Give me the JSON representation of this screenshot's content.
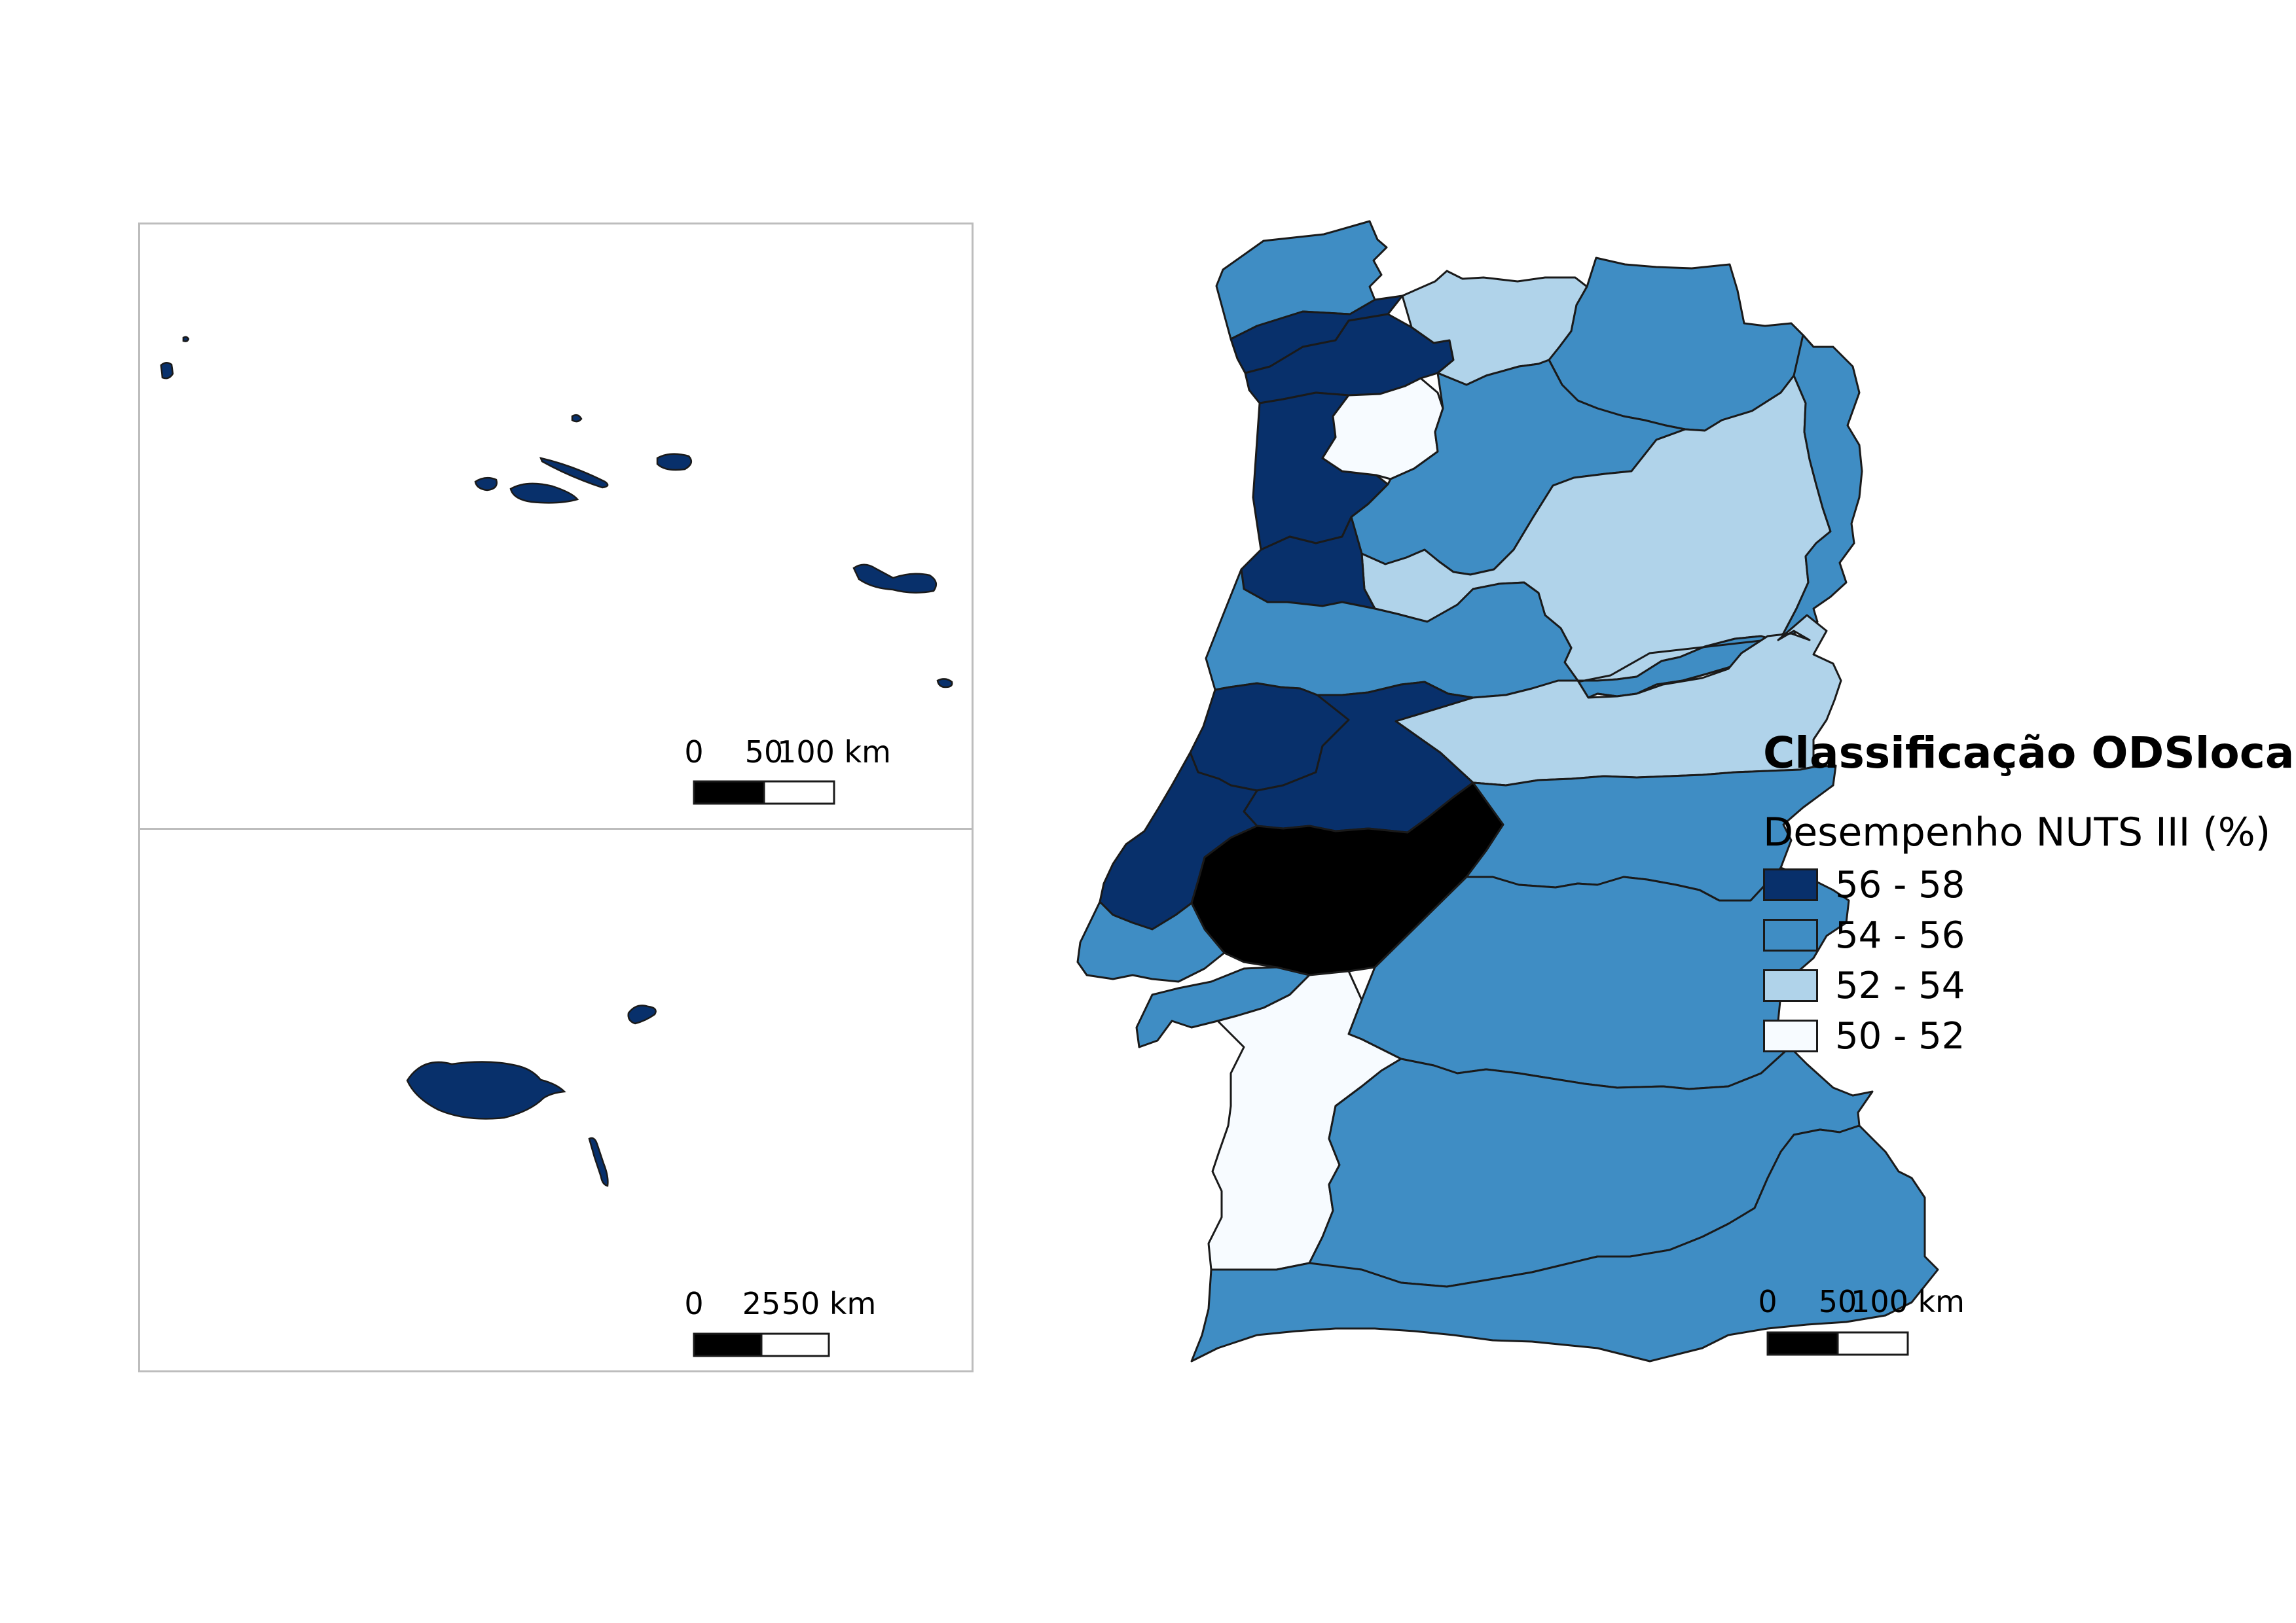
{
  "legend": {
    "title": "Classificação ODSlocal",
    "subtitle": "Desempenho NUTS III (%)",
    "classes": [
      {
        "label": "56 - 58",
        "color": "#08306b"
      },
      {
        "label": "54 - 56",
        "color": "#3f8dc4"
      },
      {
        "label": "52 - 54",
        "color": "#b0d3ea"
      },
      {
        "label": "50 - 52",
        "color": "#f7fbff"
      }
    ]
  },
  "scale_bars": {
    "azores": [
      "0",
      "50",
      "100 km"
    ],
    "madeira": [
      "0",
      "25",
      "50 km"
    ],
    "mainland": [
      "0",
      "50",
      "100 km"
    ]
  },
  "regions": {
    "azores": "56 - 58",
    "madeira": "56 - 58",
    "alto_minho": "54 - 56",
    "cavado": "56 - 58",
    "ave": "56 - 58",
    "area_metropolitana_porto": "56 - 58",
    "alto_tamega": "52 - 54",
    "tamega_e_sousa": "50 - 52",
    "terras_tras_os_montes": "54 - 56",
    "douro": "54 - 56",
    "viseu_dao_lafoes": "52 - 54",
    "regiao_de_aveiro": "56 - 58",
    "regiao_de_coimbra": "54 - 56",
    "beiras_e_serra_da_estrela": "54 - 56",
    "beira_baixa": "52 - 54",
    "regiao_de_leiria": "56 - 58",
    "medio_tejo": "56 - 58",
    "oeste": "56 - 58",
    "lezíria_do_tejo": "54 - 56",
    "area_metropolitana_lisboa_norte": "54 - 56",
    "peninsula_de_setubal": "54 - 56",
    "alto_alentejo": "54 - 56",
    "alentejo_central": "54 - 56",
    "alentejo_litoral": "50 - 52",
    "baixo_alentejo": "54 - 56",
    "algarve": "54 - 56"
  }
}
